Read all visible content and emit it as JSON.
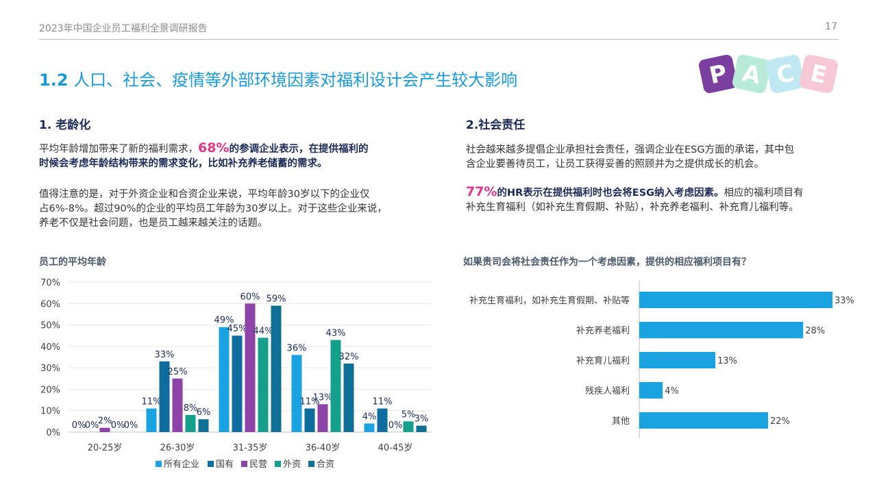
{
  "header": {
    "report_title": "2023年中国企业员工福利全景调研报告",
    "page_number": "17"
  },
  "logo": {
    "letters": [
      "P",
      "A",
      "C",
      "E"
    ],
    "colors": [
      "#7b3fa0",
      "#b8ead8",
      "#bfe8f3",
      "#f6c8d6"
    ]
  },
  "main_title": {
    "number": "1.2",
    "text": "人口、社会、疫情等外部环境因素对福利设计会产生较大影响"
  },
  "left": {
    "heading": "1. 老龄化",
    "p1_a": "平均年龄增加带来了新的福利需求，",
    "p1_em": "68%",
    "p1_b": "的参调企业表示，在提供福利的",
    "p1_c": "时候会考虑年龄结构带来的需求变化，比如补充养老储蓄的需求。",
    "p2_lines": [
      "值得注意的是，对于外资企业和合资企业来说，平均年龄30岁以下的企业仅",
      "占6%-8%。超过90%的企业的平均员工年龄为30岁以上。对于这些企业来说，",
      "养老不仅是社会问题，也是员工越来越关注的话题。"
    ],
    "chart_title": "员工的平均年龄"
  },
  "right": {
    "heading": "2.社会责任",
    "p1_lines": [
      "社会越来越多提倡企业承担社会责任，强调企业在ESG方面的承诺，其中包",
      "含企业要善待员工，让员工获得妥善的照顾并为之提供成长的机会。"
    ],
    "p2_em": "77%",
    "p2_bold": "的HR表示在提供福利时也会将ESG纳入考虑因素。",
    "p2_a": "相应的福利项目有",
    "p2_b": "补充生育福利（如补充生育假期、补贴），补充养老福利、补充育儿福利等。",
    "chart_title": "如果贵司会将社会责任作为一个考虑因素，提供的相应福利项目有？"
  },
  "chart_data": [
    {
      "type": "bar",
      "title": "员工的平均年龄",
      "categories": [
        "20-25岁",
        "26-30岁",
        "31-35岁",
        "36-40岁",
        "40-45岁"
      ],
      "series": [
        {
          "name": "所有企业",
          "color": "#1aa3e0",
          "values": [
            0,
            11,
            49,
            36,
            4
          ],
          "labels": [
            "0%",
            "11%",
            "49%",
            "36%",
            "4%"
          ]
        },
        {
          "name": "国有",
          "color": "#0e6c9e",
          "values": [
            0,
            33,
            45,
            11,
            11
          ],
          "labels": [
            "0%",
            "33%",
            "45%",
            "11%",
            "11%"
          ]
        },
        {
          "name": "民营",
          "color": "#8c44a8",
          "values": [
            2,
            25,
            60,
            13,
            0
          ],
          "labels": [
            "2%",
            "25%",
            "60%",
            "13%",
            "0%"
          ]
        },
        {
          "name": "外资",
          "color": "#14a08c",
          "values": [
            0,
            8,
            44,
            43,
            5
          ],
          "labels": [
            "0%",
            "8%",
            "44%",
            "43%",
            "5%"
          ]
        },
        {
          "name": "合资",
          "color": "#0f6f95",
          "values": [
            0,
            6,
            59,
            32,
            3
          ],
          "labels": [
            "0%",
            "6%",
            "59%",
            "32%",
            "3%"
          ]
        }
      ],
      "y_ticks": [
        "0%",
        "10%",
        "20%",
        "30%",
        "40%",
        "50%",
        "60%",
        "70%"
      ],
      "ylim": [
        0,
        70
      ],
      "grid": true,
      "legend": "bottom"
    },
    {
      "type": "bar",
      "orientation": "horizontal",
      "title": "如果贵司会将社会责任作为一个考虑因素，提供的相应福利项目有？",
      "categories": [
        "补充生育福利，如补充生育假期、补贴等",
        "补充养老福利",
        "补充育儿福利",
        "残疾人福利",
        "其他"
      ],
      "values": [
        33,
        28,
        13,
        4,
        22
      ],
      "labels": [
        "33%",
        "28%",
        "13%",
        "4%",
        "22%"
      ],
      "color": "#1aa3e0",
      "xlim": [
        0,
        33
      ]
    }
  ]
}
